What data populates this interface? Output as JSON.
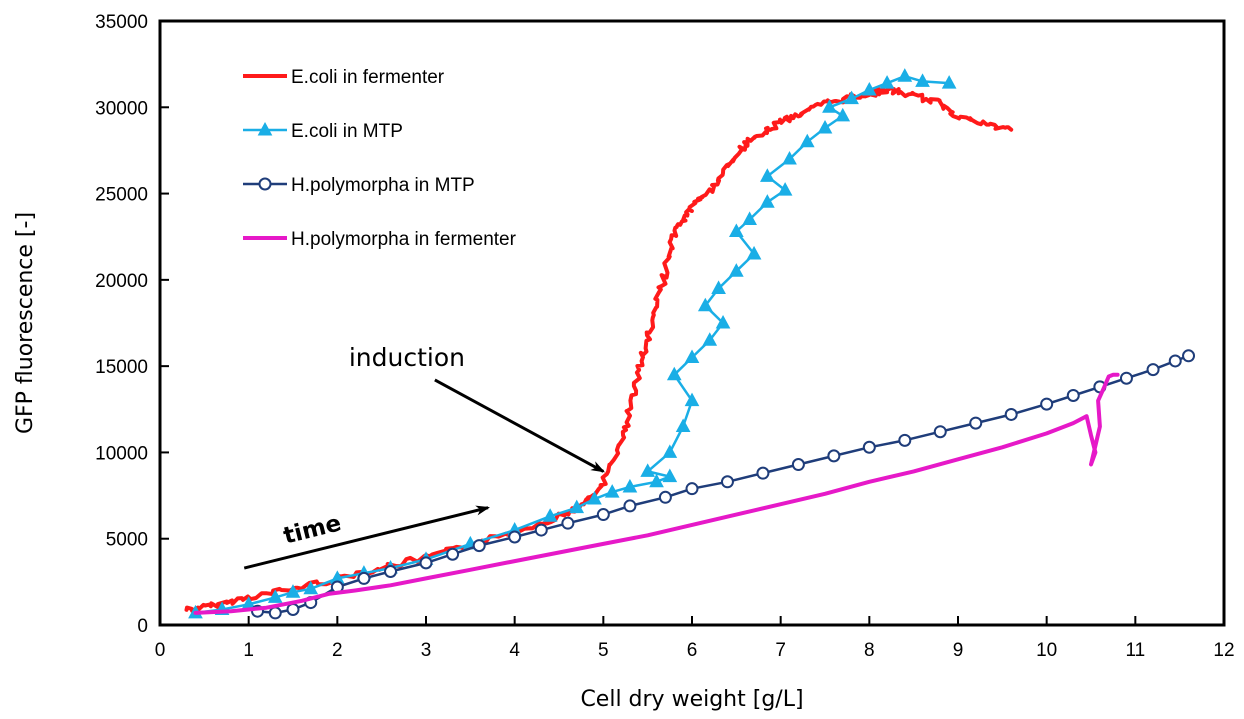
{
  "chart_data": {
    "type": "line",
    "xlabel": "Cell dry weight   [g/L]",
    "ylabel": "GFP fluorescence   [-]",
    "xlim": [
      0,
      12
    ],
    "ylim": [
      0,
      35000
    ],
    "xticks": [
      0,
      1,
      2,
      3,
      4,
      5,
      6,
      7,
      8,
      9,
      10,
      11,
      12
    ],
    "yticks": [
      0,
      5000,
      10000,
      15000,
      20000,
      25000,
      30000,
      35000
    ],
    "grid": false,
    "legend_position": "top-left",
    "annotations": [
      {
        "text": "induction",
        "arrow_from": [
          3.1,
          14200
        ],
        "arrow_to": [
          5.0,
          8900
        ]
      },
      {
        "text": "time",
        "arrow_from": [
          0.95,
          3300
        ],
        "arrow_to": [
          3.7,
          6800
        ]
      }
    ],
    "series": [
      {
        "name": "E.coli in fermenter",
        "color": "#ff1a1a",
        "marker": "none",
        "jitter": true,
        "x": [
          0.3,
          0.6,
          1.0,
          1.5,
          2.0,
          2.5,
          3.0,
          3.5,
          4.0,
          4.5,
          4.8,
          5.0,
          5.2,
          5.3,
          5.4,
          5.5,
          5.6,
          5.7,
          5.8,
          5.9,
          6.0,
          6.2,
          6.4,
          6.6,
          6.8,
          7.0,
          7.2,
          7.5,
          7.8,
          8.0,
          8.2,
          8.5,
          8.8,
          9.0,
          9.3,
          9.6
        ],
        "y": [
          900,
          1100,
          1600,
          2100,
          2700,
          3300,
          3900,
          4600,
          5400,
          6300,
          7000,
          8200,
          10500,
          12500,
          14800,
          16500,
          18500,
          20500,
          22500,
          23500,
          24200,
          25200,
          26500,
          27800,
          28500,
          29200,
          29600,
          30200,
          30600,
          30800,
          31000,
          30700,
          30200,
          29500,
          29000,
          28700
        ]
      },
      {
        "name": "E.coli in MTP",
        "color": "#1aaee6",
        "marker": "triangle",
        "x": [
          0.4,
          0.7,
          1.0,
          1.3,
          1.5,
          1.7,
          2.0,
          2.3,
          2.6,
          3.0,
          3.5,
          4.0,
          4.4,
          4.7,
          4.9,
          5.1,
          5.3,
          5.6,
          5.75,
          5.5,
          5.75,
          5.9,
          6.0,
          5.8,
          6.0,
          6.2,
          6.35,
          6.15,
          6.3,
          6.5,
          6.7,
          6.5,
          6.65,
          6.85,
          7.05,
          6.85,
          7.1,
          7.3,
          7.5,
          7.7,
          7.55,
          7.8,
          8.0,
          8.2,
          8.4,
          8.6,
          8.9
        ],
        "y": [
          700,
          900,
          1200,
          1600,
          1900,
          2100,
          2700,
          3000,
          3300,
          3800,
          4700,
          5500,
          6300,
          6800,
          7300,
          7700,
          8000,
          8300,
          8600,
          8900,
          10000,
          11500,
          13000,
          14500,
          15500,
          16500,
          17500,
          18500,
          19500,
          20500,
          21500,
          22800,
          23500,
          24500,
          25200,
          26000,
          27000,
          28000,
          28800,
          29500,
          30000,
          30500,
          31000,
          31400,
          31800,
          31500,
          31400
        ]
      },
      {
        "name": "H.polymorpha in MTP",
        "color": "#1f3d7a",
        "marker": "circle",
        "x": [
          1.1,
          1.3,
          1.5,
          1.7,
          2.0,
          2.3,
          2.6,
          3.0,
          3.3,
          3.6,
          4.0,
          4.3,
          4.6,
          5.0,
          5.3,
          5.7,
          6.0,
          6.4,
          6.8,
          7.2,
          7.6,
          8.0,
          8.4,
          8.8,
          9.2,
          9.6,
          10.0,
          10.3,
          10.6,
          10.9,
          11.2,
          11.45,
          11.6
        ],
        "y": [
          800,
          700,
          900,
          1300,
          2200,
          2700,
          3100,
          3600,
          4100,
          4600,
          5100,
          5500,
          5900,
          6400,
          6900,
          7400,
          7900,
          8300,
          8800,
          9300,
          9800,
          10300,
          10700,
          11200,
          11700,
          12200,
          12800,
          13300,
          13800,
          14300,
          14800,
          15300,
          15600
        ]
      },
      {
        "name": "H.polymorpha in fermenter",
        "color": "#e619c8",
        "marker": "none",
        "x": [
          0.4,
          0.8,
          1.2,
          1.6,
          1.9,
          2.2,
          2.6,
          3.0,
          3.5,
          4.0,
          4.5,
          5.0,
          5.5,
          6.0,
          6.5,
          7.0,
          7.5,
          8.0,
          8.5,
          9.0,
          9.5,
          10.0,
          10.3,
          10.45,
          10.5,
          10.55,
          10.5,
          10.6,
          10.58,
          10.65,
          10.7,
          10.75,
          10.8
        ],
        "y": [
          700,
          800,
          1000,
          1400,
          1800,
          2000,
          2300,
          2700,
          3200,
          3700,
          4200,
          4700,
          5200,
          5800,
          6400,
          7000,
          7600,
          8300,
          8900,
          9600,
          10300,
          11100,
          11700,
          12100,
          11000,
          10000,
          9300,
          11500,
          13000,
          13800,
          14400,
          14500,
          14500
        ]
      }
    ]
  }
}
